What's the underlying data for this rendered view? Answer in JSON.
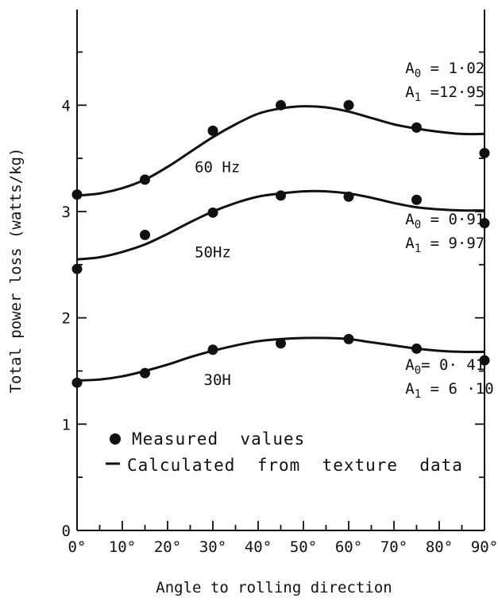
{
  "chart_data": {
    "type": "scatter",
    "title": "",
    "xlabel": "Angle to rolling direction",
    "ylabel": "Total power loss (watts/kg)",
    "xlim": [
      0,
      90
    ],
    "ylim": [
      0,
      4.9
    ],
    "grid": false,
    "x_ticks": [
      "0°",
      "10°",
      "20°",
      "30°",
      "40°",
      "50°",
      "60°",
      "70°",
      "80°",
      "90°"
    ],
    "y_ticks": [
      "0",
      "1",
      "2",
      "3",
      "4"
    ],
    "legend": {
      "placement": "lower-left",
      "measured_label": "Measured  values",
      "calculated_label": "Calculated  from  texture  data"
    },
    "series": [
      {
        "name": "60 Hz",
        "label_text": "60 Hz",
        "measured": {
          "x": [
            0,
            15,
            30,
            45,
            60,
            75,
            90
          ],
          "y": [
            3.16,
            3.3,
            3.76,
            4.0,
            4.0,
            3.79,
            3.55
          ]
        },
        "calculated": {
          "x": [
            0,
            5,
            10,
            15,
            20,
            25,
            30,
            35,
            40,
            45,
            50,
            55,
            60,
            65,
            70,
            75,
            80,
            85,
            90
          ],
          "y": [
            3.15,
            3.17,
            3.22,
            3.3,
            3.42,
            3.56,
            3.7,
            3.82,
            3.92,
            3.97,
            3.99,
            3.98,
            3.94,
            3.88,
            3.82,
            3.78,
            3.75,
            3.73,
            3.73
          ]
        },
        "annotation": [
          "A",
          "0",
          " = 1·02",
          "A",
          "1",
          " =12·95"
        ]
      },
      {
        "name": "50Hz",
        "label_text": "50Hz",
        "measured": {
          "x": [
            0,
            15,
            30,
            45,
            60,
            75,
            90
          ],
          "y": [
            2.46,
            2.78,
            2.99,
            3.15,
            3.14,
            3.11,
            2.89
          ]
        },
        "calculated": {
          "x": [
            0,
            5,
            10,
            15,
            20,
            25,
            30,
            35,
            40,
            45,
            50,
            55,
            60,
            65,
            70,
            75,
            80,
            85,
            90
          ],
          "y": [
            2.55,
            2.57,
            2.62,
            2.69,
            2.79,
            2.9,
            3.0,
            3.08,
            3.14,
            3.17,
            3.19,
            3.19,
            3.17,
            3.13,
            3.08,
            3.04,
            3.02,
            3.01,
            3.01
          ]
        },
        "annotation": [
          "A",
          "0",
          " = 0·91",
          "A",
          "1",
          " = 9·97"
        ]
      },
      {
        "name": "30H",
        "label_text": "30H",
        "measured": {
          "x": [
            0,
            15,
            30,
            45,
            60,
            75,
            90
          ],
          "y": [
            1.39,
            1.48,
            1.7,
            1.76,
            1.8,
            1.71,
            1.6
          ]
        },
        "calculated": {
          "x": [
            0,
            5,
            10,
            15,
            20,
            25,
            30,
            35,
            40,
            45,
            50,
            55,
            60,
            65,
            70,
            75,
            80,
            85,
            90
          ],
          "y": [
            1.41,
            1.42,
            1.45,
            1.5,
            1.56,
            1.63,
            1.69,
            1.74,
            1.78,
            1.8,
            1.81,
            1.81,
            1.8,
            1.77,
            1.74,
            1.71,
            1.69,
            1.68,
            1.68
          ]
        },
        "annotation": [
          "A",
          "0",
          "= 0· 41",
          "A",
          "1",
          " = 6 ·10"
        ]
      }
    ]
  }
}
